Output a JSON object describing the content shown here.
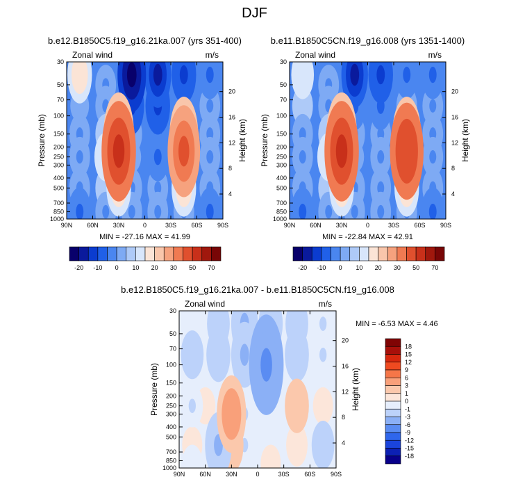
{
  "title": "DJF",
  "chart_data": [
    {
      "type": "heatmap",
      "id": "panel-a",
      "title": "b.e12.B1850C5.f19_g16.21ka.007 (yrs 351-400)",
      "variable": "Zonal wind",
      "units": "m/s",
      "ylabel": "Pressure (mb)",
      "ylabel_right": "Height (km)",
      "x_ticks": [
        "90N",
        "60N",
        "30N",
        "0",
        "30S",
        "60S",
        "90S"
      ],
      "y_ticks": [
        "30",
        "50",
        "70",
        "100",
        "150",
        "200",
        "250",
        "300",
        "400",
        "500",
        "700",
        "850",
        "1000"
      ],
      "y_right_ticks": [
        "20",
        "16",
        "12",
        "8",
        "4"
      ],
      "min_label": "MIN = -27.16",
      "max_label": "MAX =  41.99",
      "levels": [
        -25,
        -20,
        -15,
        -10,
        -5,
        0,
        5,
        10,
        15,
        20,
        25,
        30,
        40,
        50,
        60,
        70
      ],
      "colorbar_labels": [
        "-20",
        "-10",
        "0",
        "10",
        "20",
        "30",
        "50",
        "70"
      ],
      "cells": [
        {
          "lat": 75,
          "p": 40,
          "v": 15
        },
        {
          "lat": 45,
          "p": 50,
          "v": -5
        },
        {
          "lat": 15,
          "p": 40,
          "v": -25
        },
        {
          "lat": -15,
          "p": 40,
          "v": -20
        },
        {
          "lat": -45,
          "p": 40,
          "v": -15
        },
        {
          "lat": -75,
          "p": 40,
          "v": -10
        },
        {
          "lat": 75,
          "p": 80,
          "v": 0
        },
        {
          "lat": 45,
          "p": 80,
          "v": -5
        },
        {
          "lat": 15,
          "p": 80,
          "v": -15
        },
        {
          "lat": -15,
          "p": 80,
          "v": -15
        },
        {
          "lat": -45,
          "p": 80,
          "v": -10
        },
        {
          "lat": -75,
          "p": 80,
          "v": -5
        },
        {
          "lat": 75,
          "p": 150,
          "v": -5
        },
        {
          "lat": 45,
          "p": 150,
          "v": 5
        },
        {
          "lat": 30,
          "p": 150,
          "v": 30
        },
        {
          "lat": 15,
          "p": 150,
          "v": -5
        },
        {
          "lat": -15,
          "p": 150,
          "v": -10
        },
        {
          "lat": -45,
          "p": 150,
          "v": 25
        },
        {
          "lat": -75,
          "p": 150,
          "v": -5
        },
        {
          "lat": 75,
          "p": 250,
          "v": -5
        },
        {
          "lat": 45,
          "p": 250,
          "v": 10
        },
        {
          "lat": 30,
          "p": 220,
          "v": 42
        },
        {
          "lat": 15,
          "p": 250,
          "v": 0
        },
        {
          "lat": -15,
          "p": 250,
          "v": -10
        },
        {
          "lat": -45,
          "p": 220,
          "v": 35
        },
        {
          "lat": -75,
          "p": 250,
          "v": -5
        },
        {
          "lat": 75,
          "p": 500,
          "v": -5
        },
        {
          "lat": 45,
          "p": 500,
          "v": 5
        },
        {
          "lat": 30,
          "p": 500,
          "v": 15
        },
        {
          "lat": 15,
          "p": 500,
          "v": -5
        },
        {
          "lat": -15,
          "p": 500,
          "v": -5
        },
        {
          "lat": -45,
          "p": 500,
          "v": 15
        },
        {
          "lat": -75,
          "p": 500,
          "v": -5
        },
        {
          "lat": 75,
          "p": 850,
          "v": -10
        },
        {
          "lat": 45,
          "p": 850,
          "v": -5
        },
        {
          "lat": 15,
          "p": 850,
          "v": -5
        },
        {
          "lat": -15,
          "p": 850,
          "v": -5
        },
        {
          "lat": -45,
          "p": 850,
          "v": -5
        },
        {
          "lat": -75,
          "p": 850,
          "v": -10
        }
      ]
    },
    {
      "type": "heatmap",
      "id": "panel-b",
      "title": "b.e11.B1850C5CN.f19_g16.008 (yrs 1351-1400)",
      "variable": "Zonal wind",
      "units": "m/s",
      "ylabel": "Pressure (mb)",
      "ylabel_right": "Height (km)",
      "x_ticks": [
        "90N",
        "60N",
        "30N",
        "0",
        "30S",
        "60S",
        "90S"
      ],
      "y_ticks": [
        "30",
        "50",
        "70",
        "100",
        "150",
        "200",
        "250",
        "300",
        "400",
        "500",
        "700",
        "850",
        "1000"
      ],
      "y_right_ticks": [
        "20",
        "16",
        "12",
        "8",
        "4"
      ],
      "min_label": "MIN = -22.84",
      "max_label": "MAX =  42.91",
      "levels": [
        -25,
        -20,
        -15,
        -10,
        -5,
        0,
        5,
        10,
        15,
        20,
        25,
        30,
        40,
        50,
        60,
        70
      ],
      "colorbar_labels": [
        "-20",
        "-10",
        "0",
        "10",
        "20",
        "30",
        "50",
        "70"
      ],
      "cells": [
        {
          "lat": 75,
          "p": 40,
          "v": 10
        },
        {
          "lat": 45,
          "p": 50,
          "v": -5
        },
        {
          "lat": 15,
          "p": 40,
          "v": -20
        },
        {
          "lat": -15,
          "p": 40,
          "v": -15
        },
        {
          "lat": -45,
          "p": 40,
          "v": -10
        },
        {
          "lat": -75,
          "p": 40,
          "v": -10
        },
        {
          "lat": 75,
          "p": 80,
          "v": 5
        },
        {
          "lat": 45,
          "p": 80,
          "v": -5
        },
        {
          "lat": 15,
          "p": 80,
          "v": -10
        },
        {
          "lat": -15,
          "p": 80,
          "v": -10
        },
        {
          "lat": -45,
          "p": 80,
          "v": -5
        },
        {
          "lat": -75,
          "p": 80,
          "v": -5
        },
        {
          "lat": 75,
          "p": 150,
          "v": -5
        },
        {
          "lat": 45,
          "p": 150,
          "v": 5
        },
        {
          "lat": 30,
          "p": 150,
          "v": 30
        },
        {
          "lat": 15,
          "p": 150,
          "v": -5
        },
        {
          "lat": -15,
          "p": 150,
          "v": -5
        },
        {
          "lat": -45,
          "p": 150,
          "v": 25
        },
        {
          "lat": -75,
          "p": 150,
          "v": -5
        },
        {
          "lat": 75,
          "p": 250,
          "v": -5
        },
        {
          "lat": 45,
          "p": 250,
          "v": 10
        },
        {
          "lat": 30,
          "p": 220,
          "v": 43
        },
        {
          "lat": 15,
          "p": 250,
          "v": 0
        },
        {
          "lat": -15,
          "p": 250,
          "v": -5
        },
        {
          "lat": -45,
          "p": 220,
          "v": 38
        },
        {
          "lat": -75,
          "p": 250,
          "v": -5
        },
        {
          "lat": 75,
          "p": 500,
          "v": -5
        },
        {
          "lat": 45,
          "p": 500,
          "v": 5
        },
        {
          "lat": 30,
          "p": 500,
          "v": 15
        },
        {
          "lat": 15,
          "p": 500,
          "v": -5
        },
        {
          "lat": -15,
          "p": 500,
          "v": -5
        },
        {
          "lat": -45,
          "p": 500,
          "v": 15
        },
        {
          "lat": -75,
          "p": 500,
          "v": -5
        },
        {
          "lat": 75,
          "p": 850,
          "v": -10
        },
        {
          "lat": 45,
          "p": 850,
          "v": -5
        },
        {
          "lat": 15,
          "p": 850,
          "v": -5
        },
        {
          "lat": -15,
          "p": 850,
          "v": -5
        },
        {
          "lat": -45,
          "p": 850,
          "v": -5
        },
        {
          "lat": -75,
          "p": 850,
          "v": -10
        }
      ]
    },
    {
      "type": "heatmap",
      "id": "panel-c",
      "title": "b.e12.B1850C5.f19_g16.21ka.007 - b.e11.B1850C5CN.f19_g16.008",
      "variable": "Zonal wind",
      "units": "m/s",
      "ylabel": "Pressure (mb)",
      "ylabel_right": "Height (km)",
      "x_ticks": [
        "90N",
        "60N",
        "30N",
        "0",
        "30S",
        "60S",
        "90S"
      ],
      "y_ticks": [
        "30",
        "50",
        "70",
        "100",
        "150",
        "200",
        "250",
        "300",
        "400",
        "500",
        "700",
        "850",
        "1000"
      ],
      "y_right_ticks": [
        "20",
        "16",
        "12",
        "8",
        "4"
      ],
      "min_label": "MIN = -6.53",
      "max_label": "MAX =  4.46",
      "levels": [
        -18,
        -15,
        -12,
        -9,
        -6,
        -3,
        -1,
        0,
        1,
        3,
        6,
        9,
        12,
        15,
        18
      ],
      "colorbar_labels": [
        "18",
        "15",
        "12",
        "9",
        "6",
        "3",
        "1",
        "0",
        "-1",
        "-3",
        "-6",
        "-9",
        "-12",
        "-15",
        "-18"
      ],
      "cells": [
        {
          "lat": 75,
          "p": 40,
          "v": -0.5
        },
        {
          "lat": 45,
          "p": 40,
          "v": -1.5
        },
        {
          "lat": 15,
          "p": 40,
          "v": -3
        },
        {
          "lat": -15,
          "p": 40,
          "v": -2
        },
        {
          "lat": -45,
          "p": 40,
          "v": -1.5
        },
        {
          "lat": -75,
          "p": 40,
          "v": -1
        },
        {
          "lat": 75,
          "p": 80,
          "v": -1.5
        },
        {
          "lat": 45,
          "p": 80,
          "v": -2
        },
        {
          "lat": 15,
          "p": 80,
          "v": -3
        },
        {
          "lat": -10,
          "p": 100,
          "v": -6
        },
        {
          "lat": -45,
          "p": 80,
          "v": -2
        },
        {
          "lat": -75,
          "p": 80,
          "v": -1
        },
        {
          "lat": 75,
          "p": 250,
          "v": -1
        },
        {
          "lat": 60,
          "p": 250,
          "v": 0.5
        },
        {
          "lat": 30,
          "p": 300,
          "v": 4
        },
        {
          "lat": 15,
          "p": 300,
          "v": -1
        },
        {
          "lat": -15,
          "p": 250,
          "v": -1
        },
        {
          "lat": -45,
          "p": 250,
          "v": 2
        },
        {
          "lat": -75,
          "p": 250,
          "v": 0.5
        },
        {
          "lat": 75,
          "p": 600,
          "v": 0.5
        },
        {
          "lat": 45,
          "p": 600,
          "v": -3
        },
        {
          "lat": 30,
          "p": 600,
          "v": 2
        },
        {
          "lat": 15,
          "p": 600,
          "v": -1
        },
        {
          "lat": -15,
          "p": 600,
          "v": -0.5
        },
        {
          "lat": -45,
          "p": 600,
          "v": 1
        },
        {
          "lat": -75,
          "p": 600,
          "v": -1.5
        },
        {
          "lat": 75,
          "p": 900,
          "v": -0.5
        },
        {
          "lat": 45,
          "p": 900,
          "v": 0.5
        },
        {
          "lat": 15,
          "p": 900,
          "v": -0.5
        },
        {
          "lat": -15,
          "p": 900,
          "v": 0.5
        },
        {
          "lat": -45,
          "p": 900,
          "v": -0.5
        },
        {
          "lat": -75,
          "p": 900,
          "v": -0.5
        }
      ]
    }
  ]
}
